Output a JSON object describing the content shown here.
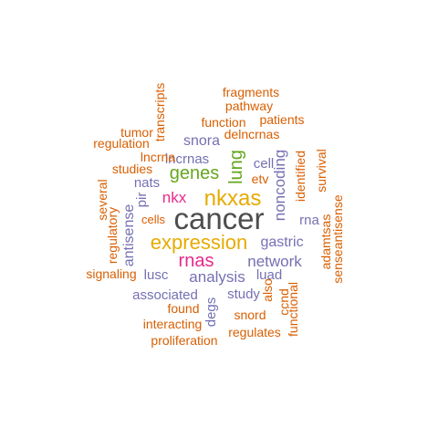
{
  "palette": {
    "gray": "#4d4d4d",
    "orange": "#d95f02",
    "purple": "#7570b3",
    "magenta": "#e7298a",
    "green": "#66a61e",
    "gold": "#e6ab02"
  },
  "words": [
    {
      "text": "cancer",
      "color": "gray"
    },
    {
      "text": "nkxas",
      "color": "gold"
    },
    {
      "text": "expression",
      "color": "gold"
    },
    {
      "text": "rnas",
      "color": "magenta"
    },
    {
      "text": "genes",
      "color": "green"
    },
    {
      "text": "lung",
      "color": "green"
    },
    {
      "text": "nkx",
      "color": "magenta"
    },
    {
      "text": "network",
      "color": "purple"
    },
    {
      "text": "noncoding",
      "color": "purple"
    },
    {
      "text": "analysis",
      "color": "purple"
    },
    {
      "text": "gastric",
      "color": "purple"
    },
    {
      "text": "snora",
      "color": "purple"
    },
    {
      "text": "antisense",
      "color": "purple"
    },
    {
      "text": "lncrnas",
      "color": "purple"
    },
    {
      "text": "nats",
      "color": "purple"
    },
    {
      "text": "associated",
      "color": "purple"
    },
    {
      "text": "cell",
      "color": "purple"
    },
    {
      "text": "luad",
      "color": "purple"
    },
    {
      "text": "study",
      "color": "purple"
    },
    {
      "text": "lusc",
      "color": "purple"
    },
    {
      "text": "degs",
      "color": "purple"
    },
    {
      "text": "rna",
      "color": "purple"
    },
    {
      "text": "pir",
      "color": "purple"
    },
    {
      "text": "cells",
      "color": "orange"
    },
    {
      "text": "delncrnas",
      "color": "orange"
    },
    {
      "text": "fragments",
      "color": "orange"
    },
    {
      "text": "pathway",
      "color": "orange"
    },
    {
      "text": "function",
      "color": "orange"
    },
    {
      "text": "patients",
      "color": "orange"
    },
    {
      "text": "transcripts",
      "color": "orange"
    },
    {
      "text": "tumor",
      "color": "orange"
    },
    {
      "text": "regulation",
      "color": "orange"
    },
    {
      "text": "lncrna",
      "color": "orange"
    },
    {
      "text": "studies",
      "color": "orange"
    },
    {
      "text": "several",
      "color": "orange"
    },
    {
      "text": "regulatory",
      "color": "orange"
    },
    {
      "text": "etv",
      "color": "orange"
    },
    {
      "text": "identified",
      "color": "orange"
    },
    {
      "text": "survival",
      "color": "orange"
    },
    {
      "text": "adamtsas",
      "color": "orange"
    },
    {
      "text": "senseantisense",
      "color": "orange"
    },
    {
      "text": "signaling",
      "color": "orange"
    },
    {
      "text": "also",
      "color": "orange"
    },
    {
      "text": "ccnd",
      "color": "orange"
    },
    {
      "text": "functional",
      "color": "orange"
    },
    {
      "text": "found",
      "color": "orange"
    },
    {
      "text": "snord",
      "color": "orange"
    },
    {
      "text": "interacting",
      "color": "orange"
    },
    {
      "text": "regulates",
      "color": "orange"
    },
    {
      "text": "proliferation",
      "color": "orange"
    }
  ]
}
